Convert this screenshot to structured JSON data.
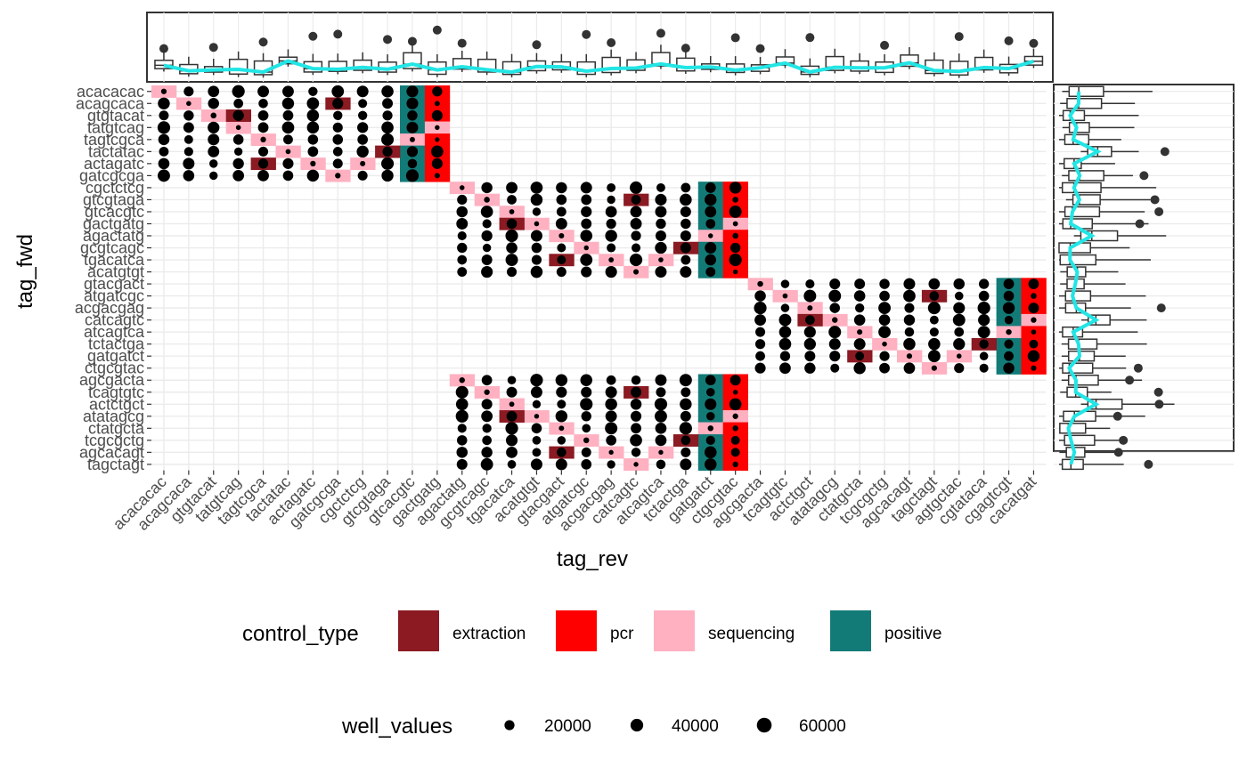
{
  "chart_data": {
    "type": "heatmap",
    "xlabel": "tag_rev",
    "ylabel": "tag_fwd",
    "x": [
      "acacacac",
      "acagcaca",
      "gtgtacat",
      "tatgtcag",
      "tagtcgca",
      "tactatac",
      "actagatc",
      "gatcgcga",
      "cgctctcg",
      "gtcgtaga",
      "gtcacgtc",
      "gactgatg",
      "agactatg",
      "gcgtcagc",
      "tgacatca",
      "acatgtgt",
      "gtacgact",
      "atgatcgc",
      "acgacgag",
      "catcagtc",
      "atcagtca",
      "tctactga",
      "gatgatct",
      "ctgcgtac",
      "agcgacta",
      "tcagtgtc",
      "actctgct",
      "atatagcg",
      "ctatgcta",
      "tcgcgctg",
      "agcacagt",
      "tagctagt",
      "agtgctac",
      "cgtataca",
      "cgagtcgt",
      "cacatgat"
    ],
    "y": [
      "acacacac",
      "acagcaca",
      "gtgtacat",
      "tatgtcag",
      "tagtcgca",
      "tactatac",
      "actagatc",
      "gatcgcga",
      "cgctctcg",
      "gtcgtaga",
      "gtcacgtc",
      "gactgatg",
      "agactatg",
      "gcgtcagc",
      "tgacatca",
      "acatgtgt",
      "gtacgact",
      "atgatcgc",
      "acgacgag",
      "catcagtc",
      "atcagtca",
      "tctactga",
      "gatgatct",
      "ctgcgtac",
      "agcgacta",
      "tcagtgtc",
      "actctgct",
      "atatagcg",
      "ctatgcta",
      "tcgcgctg",
      "agcacagt",
      "tagctagt"
    ],
    "fill_legend": {
      "title": "control_type",
      "items": [
        {
          "label": "extraction",
          "color": "#8B1A22"
        },
        {
          "label": "pcr",
          "color": "#FF0000"
        },
        {
          "label": "sequencing",
          "color": "#FFB1C1"
        },
        {
          "label": "positive",
          "color": "#137B77"
        }
      ]
    },
    "size_legend": {
      "title": "well_values",
      "items": [
        {
          "label": "20000",
          "value": 20000
        },
        {
          "label": "40000",
          "value": 40000
        },
        {
          "label": "60000",
          "value": 60000
        }
      ]
    },
    "grid": true,
    "marginal_top": {
      "type": "boxplot",
      "smooth_color": "#22E5E5"
    },
    "marginal_right": {
      "type": "boxplot",
      "smooth_color": "#22E5E5"
    }
  }
}
